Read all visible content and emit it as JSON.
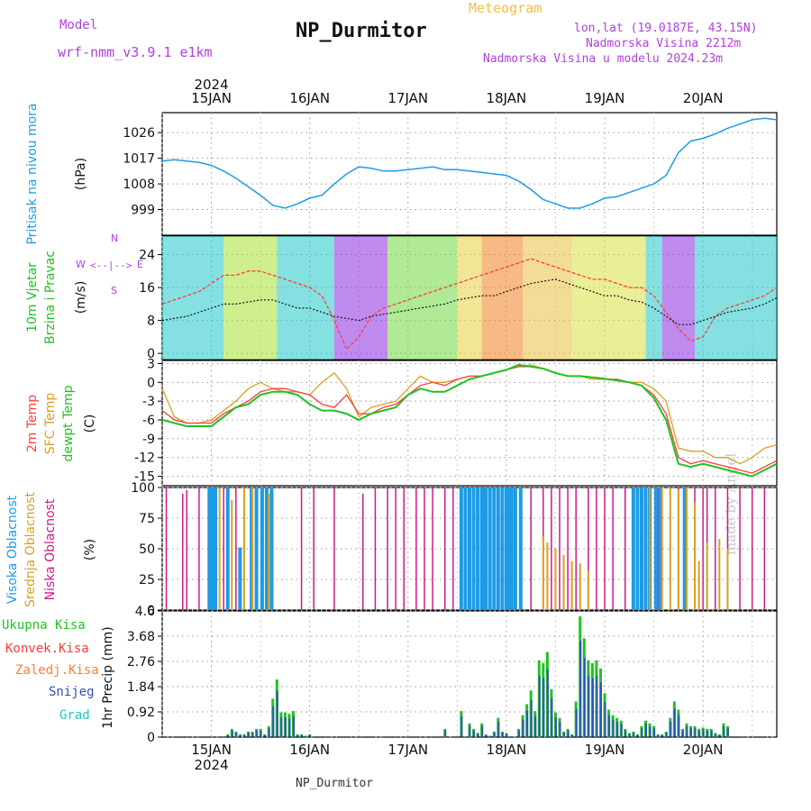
{
  "header": {
    "model_label": "Model",
    "model_value": "wrf-nmm_v3.9.1 e1km",
    "app_title": "Meteogram",
    "station": "NP_Durmitor",
    "coords": "lon,lat (19.0187E, 43.15N)",
    "elevation": "Nadmorska Visina 2212m",
    "model_elevation": "Nadmorska Visina u modelu 2024.23m",
    "watermark": "made by Angel",
    "footer_station": "NP_Durmitor"
  },
  "colors": {
    "pressure": "#1e9be6",
    "temp2m": "#ff3b3b",
    "sfc": "#d9a020",
    "dewpt": "#22c122",
    "high_cloud": "#1e9be6",
    "mid_cloud": "#d9a020",
    "low_cloud": "#cc1a8c",
    "purple": "#b040e0",
    "gold": "#f0c040"
  },
  "chart_data": [
    {
      "type": "line",
      "ylabel_name": "Pritisak na nivou mora",
      "ylabel_unit": "(hPa)",
      "ylim": [
        990,
        1033
      ],
      "yticks": [
        999,
        1008,
        1017,
        1026
      ],
      "x_hours": [
        0,
        3,
        6,
        9,
        12,
        15,
        18,
        21,
        24,
        27,
        30,
        33,
        36,
        39,
        42,
        45,
        48,
        51,
        54,
        57,
        60,
        63,
        66,
        69,
        72,
        75,
        78,
        81,
        84,
        87,
        90,
        93,
        96,
        99,
        102,
        105,
        108,
        111,
        114,
        117,
        120,
        123,
        126,
        129,
        132,
        135,
        138,
        141,
        144,
        147,
        150
      ],
      "series": [
        {
          "name": "Pritisak na nivou mora",
          "values": [
            1016,
            1016.5,
            1016,
            1015.5,
            1014.5,
            1012.5,
            1010,
            1007,
            1004,
            1000.5,
            999.5,
            1001,
            1003,
            1004,
            1008,
            1011.5,
            1014,
            1013.5,
            1012.5,
            1012.5,
            1013,
            1013.5,
            1014,
            1013,
            1013,
            1012.5,
            1012,
            1011.5,
            1011,
            1009,
            1006,
            1002.5,
            1001,
            999.5,
            999.5,
            1001,
            1003,
            1003.5,
            1005,
            1006.5,
            1008,
            1011,
            1019,
            1023,
            1024,
            1025.5,
            1027.5,
            1029,
            1030.5,
            1031,
            1030.5
          ]
        }
      ]
    },
    {
      "type": "line",
      "ylabel_name": "10m Vjetar",
      "ylabel_name2": "Brzina i Pravac",
      "ylabel_unit": "(m/s)",
      "ylim": [
        -1.5,
        28.5
      ],
      "yticks": [
        0,
        8,
        16,
        24
      ],
      "compass": {
        "n": "N",
        "s": "S",
        "e": "E",
        "w": "W",
        "arrows": "<--|-->"
      },
      "x_hours": [
        0,
        3,
        6,
        9,
        12,
        15,
        18,
        21,
        24,
        27,
        30,
        33,
        36,
        39,
        42,
        45,
        48,
        51,
        54,
        57,
        60,
        63,
        66,
        69,
        72,
        75,
        78,
        81,
        84,
        87,
        90,
        93,
        96,
        99,
        102,
        105,
        108,
        111,
        114,
        117,
        120,
        123,
        126,
        129,
        132,
        135,
        138,
        141,
        144,
        147,
        150
      ],
      "series": [
        {
          "name": "wind speed",
          "values": [
            8,
            8.5,
            9,
            10,
            11,
            12,
            12,
            12.5,
            13,
            13,
            12,
            11,
            11,
            10,
            9,
            8.5,
            8,
            9,
            9.5,
            10,
            10.5,
            11,
            11.5,
            12,
            13,
            13.5,
            14,
            14,
            15,
            16,
            17,
            17.5,
            18,
            17,
            16,
            15,
            14,
            14,
            13,
            12.5,
            11,
            9,
            7,
            7,
            8,
            9,
            10,
            10.5,
            11,
            12,
            13.5
          ]
        },
        {
          "name": "wind gust",
          "values": [
            12,
            13,
            14,
            15,
            17,
            19,
            19,
            20,
            20,
            19,
            18,
            17,
            16,
            14,
            8,
            1,
            4,
            9,
            11,
            12,
            13,
            14,
            15,
            16,
            17,
            18,
            19,
            20,
            21,
            22,
            23,
            22,
            21,
            20,
            19,
            18,
            18,
            17,
            16,
            16,
            14,
            10,
            6,
            3,
            4,
            9,
            11,
            12,
            13,
            14,
            16
          ]
        }
      ]
    },
    {
      "type": "line",
      "ylabel_names": [
        "2m Temp",
        "SFC Temp",
        "dewpt Temp"
      ],
      "ylabel_unit": "(C)",
      "ylim": [
        -16.5,
        3.5
      ],
      "yticks": [
        3,
        0,
        -3,
        -6,
        -9,
        -12,
        -15
      ],
      "x_hours": [
        0,
        3,
        6,
        9,
        12,
        15,
        18,
        21,
        24,
        27,
        30,
        33,
        36,
        39,
        42,
        45,
        48,
        51,
        54,
        57,
        60,
        63,
        66,
        69,
        72,
        75,
        78,
        81,
        84,
        87,
        90,
        93,
        96,
        99,
        102,
        105,
        108,
        111,
        114,
        117,
        120,
        123,
        126,
        129,
        132,
        135,
        138,
        141,
        144,
        147,
        150
      ],
      "series": [
        {
          "name": "2m Temp",
          "values": [
            -4.5,
            -6,
            -6.5,
            -6.5,
            -6.5,
            -5,
            -4,
            -3,
            -1.5,
            -1,
            -1,
            -1.5,
            -2,
            -3.5,
            -4,
            -2,
            -5,
            -5,
            -4,
            -3.5,
            -2,
            -0.5,
            0,
            -0.5,
            0.5,
            1,
            1,
            1.5,
            2,
            2.5,
            2.5,
            2.2,
            1.5,
            1,
            1,
            0.8,
            0.5,
            0.5,
            0,
            -0.5,
            -2,
            -5,
            -12,
            -13,
            -12.5,
            -13,
            -13.5,
            -14,
            -14.5,
            -13.5,
            -12.5
          ]
        },
        {
          "name": "SFC Temp",
          "values": [
            -1,
            -5.5,
            -6.5,
            -6.5,
            -6,
            -4.5,
            -3,
            -1,
            0,
            -1,
            -1.5,
            -1.5,
            -2,
            0,
            1.5,
            -1,
            -5.5,
            -4,
            -3.5,
            -3,
            -1,
            1,
            0,
            0,
            0.5,
            1,
            1,
            1.5,
            2,
            2.5,
            2.8,
            2.2,
            1.5,
            1,
            1,
            0.5,
            0.5,
            0.3,
            0,
            0,
            -1,
            -3,
            -10.5,
            -11,
            -11,
            -12,
            -12,
            -13,
            -12,
            -10.5,
            -10
          ]
        },
        {
          "name": "dewpt Temp",
          "values": [
            -6,
            -6.5,
            -7,
            -7,
            -7,
            -5.5,
            -4,
            -3.5,
            -2,
            -1.5,
            -1.5,
            -2,
            -3.5,
            -4.5,
            -4.5,
            -5,
            -6,
            -5,
            -4.5,
            -4,
            -2,
            -1,
            -1.5,
            -1.5,
            -0.5,
            0.5,
            1,
            1.5,
            2,
            2.8,
            2.5,
            2.2,
            1.5,
            1,
            1,
            0.8,
            0.6,
            0.3,
            0,
            -0.5,
            -2.5,
            -6,
            -13,
            -13.5,
            -13,
            -13.5,
            -14,
            -14.5,
            -15,
            -14,
            -13
          ]
        }
      ]
    },
    {
      "type": "bar",
      "ylabel_names": [
        "Visoka Oblacnost",
        "Srednja Oblacnost",
        "Niska Oblacnost"
      ],
      "ylabel_unit": "(%)",
      "ylim": [
        0,
        100
      ],
      "yticks": [
        0,
        25,
        50,
        75,
        100
      ],
      "series": [
        {
          "name": "Niska Oblacnost",
          "hours": [
            1,
            5,
            6,
            9,
            15,
            18,
            27,
            34,
            37,
            42,
            49,
            52,
            55,
            57,
            59,
            62,
            64,
            66,
            69,
            71,
            75,
            80,
            86,
            90,
            93,
            95,
            97,
            99,
            101,
            104,
            106,
            108,
            110,
            113,
            115,
            118,
            121,
            126,
            128,
            130,
            132,
            133,
            135,
            138,
            141,
            144,
            147
          ],
          "values": [
            100,
            95,
            98,
            100,
            100,
            100,
            95,
            100,
            100,
            100,
            95,
            100,
            100,
            100,
            100,
            100,
            100,
            100,
            100,
            100,
            100,
            100,
            100,
            100,
            100,
            100,
            100,
            100,
            100,
            100,
            100,
            100,
            100,
            100,
            100,
            100,
            100,
            100,
            100,
            100,
            100,
            100,
            100,
            100,
            100,
            100,
            100
          ]
        },
        {
          "name": "Visoka Oblacnost",
          "hours": [
            11.5,
            12,
            12.4,
            13,
            16,
            19,
            21.8,
            23,
            24.4,
            25.5,
            26.7,
            73,
            74,
            75,
            76,
            77,
            78,
            78.5,
            79,
            80,
            81,
            82,
            83,
            84,
            84.6,
            85.3,
            86.2,
            87.5,
            115,
            116,
            117,
            118,
            119,
            120.5,
            121.5,
            127.5
          ],
          "values": [
            100,
            100,
            100,
            100,
            100,
            51,
            100,
            100,
            100,
            100,
            100,
            100,
            100,
            100,
            100,
            100,
            100,
            100,
            100,
            100,
            100,
            100,
            100,
            100,
            100,
            100,
            100,
            100,
            100,
            100,
            100,
            100,
            100,
            100,
            100,
            100
          ]
        },
        {
          "name": "Srednja Oblacnost",
          "hours": [
            14,
            17,
            20,
            22,
            26,
            93,
            94,
            96,
            98,
            100,
            102,
            104,
            119,
            122,
            124,
            126,
            128,
            130,
            131,
            133,
            136,
            138
          ],
          "values": [
            100,
            90,
            100,
            100,
            95,
            60,
            55,
            50,
            45,
            40,
            38,
            32,
            100,
            100,
            100,
            98,
            100,
            88,
            40,
            55,
            58,
            50
          ]
        }
      ]
    },
    {
      "type": "bar",
      "ylabel_names": [
        "Ukupna Kisa",
        "Konvek.Kisa",
        "Zaledj.Kisa",
        "Snijeg",
        "Grad"
      ],
      "ylabel_unit": "1hr Precip (mm)",
      "ylim": [
        0,
        4.6
      ],
      "yticks": [
        0,
        0.92,
        1.84,
        2.76,
        3.68,
        4.6
      ],
      "series": [
        {
          "name": "Ukupna Kisa",
          "hours": [
            16,
            17,
            18,
            19,
            20,
            21,
            22,
            23,
            24,
            25,
            26,
            27,
            28,
            29,
            30,
            31,
            32,
            33,
            34,
            35,
            36,
            69,
            73,
            75,
            76,
            77,
            78,
            79,
            80,
            81,
            82,
            83,
            84,
            87,
            88,
            89,
            90,
            91,
            92,
            93,
            94,
            95,
            96,
            97,
            98,
            99,
            100,
            101,
            102,
            103,
            104,
            105,
            106,
            107,
            108,
            109,
            110,
            111,
            112,
            113,
            114,
            115,
            116,
            117,
            118,
            119,
            120,
            121,
            122,
            123,
            124,
            125,
            126,
            127,
            128,
            129,
            130,
            131,
            132,
            133,
            134,
            135,
            136,
            137,
            138
          ],
          "values": [
            0.1,
            0.3,
            0.2,
            0.1,
            0.1,
            0.2,
            0.2,
            0.3,
            0.3,
            0.1,
            0.4,
            1.4,
            2.1,
            0.9,
            0.9,
            0.85,
            0.95,
            0.1,
            0.1,
            0.05,
            0.1,
            0.3,
            0.95,
            0.5,
            0.3,
            0.15,
            0.5,
            0.1,
            0.05,
            0.2,
            0.7,
            0.2,
            0.15,
            0.3,
            0.8,
            1.2,
            1.7,
            0.95,
            2.8,
            2.7,
            3.1,
            1.75,
            0.9,
            0.7,
            0.2,
            0.3,
            0.1,
            1.3,
            4.4,
            3.6,
            2.8,
            2.7,
            2.8,
            2.5,
            1.6,
            1.0,
            0.8,
            0.7,
            0.6,
            0.3,
            0.15,
            0.2,
            0.1,
            0.4,
            0.6,
            0.5,
            0.4,
            0.1,
            0.1,
            0.2,
            0.7,
            1.3,
            1.0,
            0.3,
            0.5,
            0.4,
            0.4,
            0.3,
            0.35,
            0.3,
            0.3,
            0.15,
            0.1,
            0.5,
            0.4
          ]
        }
      ]
    }
  ],
  "xaxis": {
    "date_ticks": [
      {
        "label": "15JAN",
        "hour": 12
      },
      {
        "label": "16JAN",
        "hour": 36
      },
      {
        "label": "17JAN",
        "hour": 60
      },
      {
        "label": "18JAN",
        "hour": 84
      },
      {
        "label": "19JAN",
        "hour": 108
      },
      {
        "label": "20JAN",
        "hour": 132
      }
    ],
    "year": "2024",
    "hours_total": 150
  }
}
